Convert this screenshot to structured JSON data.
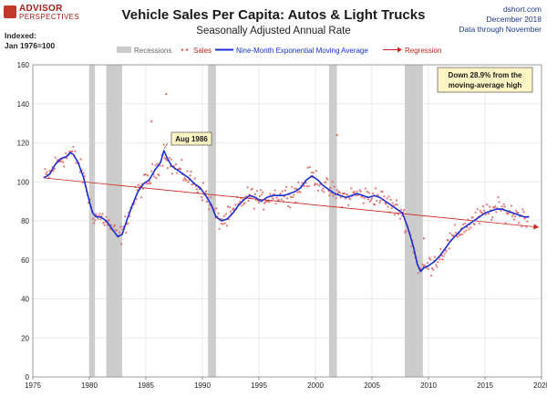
{
  "header": {
    "logo_line1": "ADVISOR",
    "logo_line2": "PERSPECTIVES",
    "index_line1": "Indexed:",
    "index_line2": "Jan 1976=100",
    "source_line1": "dshort.com",
    "source_line2": "December 2018",
    "source_line3": "Data through November"
  },
  "colors": {
    "recession": "#cccccc",
    "sales_dots": "#e06060",
    "moving_average": "#1a2fd6",
    "regression": "#c8261e",
    "annotation_fill": "#fdf5c3",
    "grid": "#e2e2e2"
  },
  "chart_data": {
    "type": "line",
    "title": "Vehicle Sales Per Capita: Autos & Light Trucks",
    "subtitle": "Seasonally Adjusted Annual Rate",
    "xlim": [
      1975,
      2020
    ],
    "ylim": [
      0,
      160
    ],
    "x_ticks": [
      1975,
      1980,
      1985,
      1990,
      1995,
      2000,
      2005,
      2010,
      2015,
      2020
    ],
    "y_ticks": [
      0,
      20,
      40,
      60,
      80,
      100,
      120,
      140,
      160
    ],
    "grid": true,
    "legend_position": "top",
    "legend": [
      "Recessions",
      "Sales",
      "Nine-Month Exponential Moving Average",
      "Regression"
    ],
    "recessions": [
      [
        1980.0,
        1980.5
      ],
      [
        1981.5,
        1982.9
      ],
      [
        1990.5,
        1991.2
      ],
      [
        2001.2,
        2001.9
      ],
      [
        2007.9,
        2009.5
      ]
    ],
    "moving_average": {
      "x": [
        1976.0,
        1976.5,
        1977.0,
        1977.5,
        1978.0,
        1978.3,
        1978.6,
        1979.0,
        1979.5,
        1980.0,
        1980.3,
        1980.6,
        1981.0,
        1981.5,
        1982.0,
        1982.5,
        1982.9,
        1983.3,
        1983.8,
        1984.3,
        1984.8,
        1985.3,
        1985.8,
        1986.3,
        1986.6,
        1986.9,
        1987.3,
        1987.8,
        1988.3,
        1988.8,
        1989.3,
        1989.8,
        1990.3,
        1990.8,
        1991.2,
        1991.7,
        1992.2,
        1992.7,
        1993.2,
        1993.7,
        1994.2,
        1994.7,
        1995.2,
        1995.7,
        1996.2,
        1996.7,
        1997.2,
        1997.7,
        1998.2,
        1998.7,
        1999.2,
        1999.7,
        2000.2,
        2000.7,
        2001.2,
        2001.7,
        2002.2,
        2002.7,
        2003.2,
        2003.7,
        2004.2,
        2004.7,
        2005.2,
        2005.7,
        2006.2,
        2006.7,
        2007.2,
        2007.7,
        2008.2,
        2008.7,
        2009.0,
        2009.3,
        2009.6,
        2010.0,
        2010.5,
        2011.0,
        2011.5,
        2012.0,
        2012.5,
        2013.0,
        2013.5,
        2014.0,
        2014.5,
        2015.0,
        2015.5,
        2016.0,
        2016.5,
        2017.0,
        2017.5,
        2018.0,
        2018.5,
        2018.9
      ],
      "values": [
        102,
        104,
        109,
        112,
        113,
        115,
        114,
        110,
        102,
        90,
        84,
        82,
        82,
        80,
        76,
        72,
        73,
        80,
        88,
        95,
        99,
        101,
        106,
        110,
        116,
        112,
        108,
        106,
        104,
        102,
        99,
        97,
        93,
        88,
        82,
        80,
        81,
        84,
        88,
        91,
        93,
        92,
        90,
        92,
        93,
        93,
        93,
        94,
        95,
        97,
        101,
        103,
        101,
        98,
        96,
        94,
        93,
        92,
        93,
        94,
        93,
        92,
        93,
        92,
        90,
        88,
        86,
        84,
        76,
        66,
        58,
        54,
        56,
        57,
        59,
        62,
        66,
        70,
        73,
        76,
        78,
        80,
        82,
        84,
        85,
        86,
        86,
        85,
        84,
        83,
        82,
        82
      ]
    },
    "regression": {
      "x": [
        1976.0,
        2019.3
      ],
      "values": [
        102.0,
        77.0
      ]
    },
    "annotations": [
      {
        "text": "Aug 1986",
        "x": 1986.6,
        "y": 116
      },
      {
        "text_line1": "Down 28.9% from the",
        "text_line2": "moving-average high"
      }
    ]
  }
}
